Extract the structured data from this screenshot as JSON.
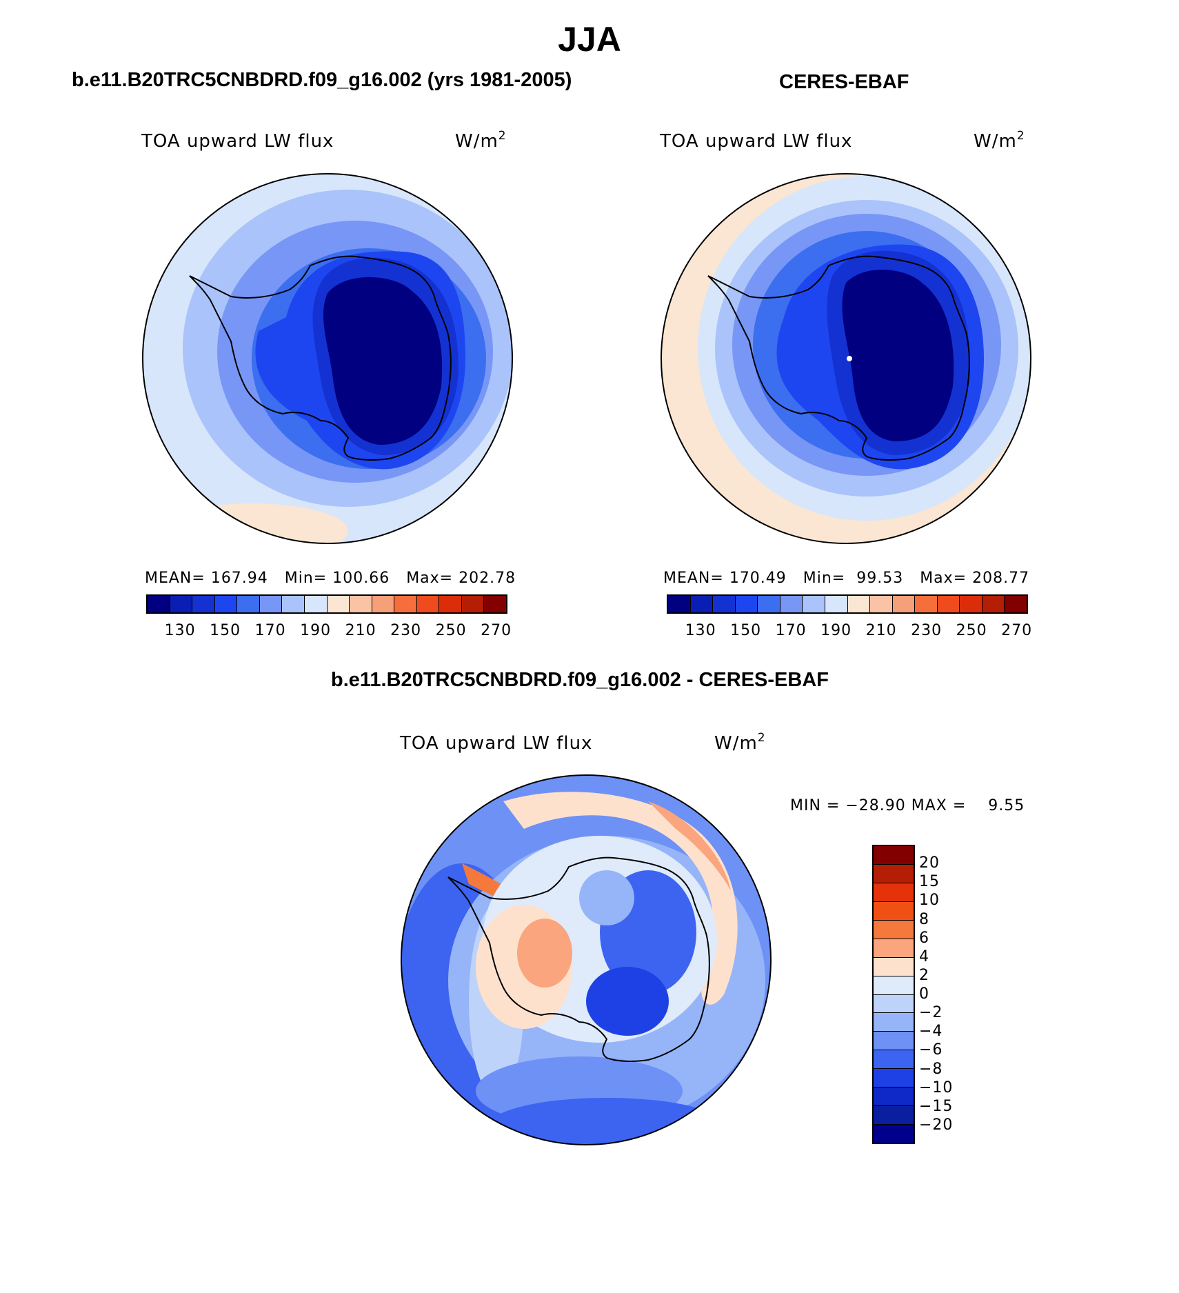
{
  "title": "JJA",
  "panels": {
    "model": {
      "title": "b.e11.B20TRC5CNBDRD.f09_g16.002 (yrs 1981-2005)",
      "variable": "TOA upward LW flux",
      "unit_base": "W/m",
      "unit_exp": "2",
      "stats": "MEAN= 167.94   Min= 100.66   Max= 202.78"
    },
    "obs": {
      "title": "CERES-EBAF",
      "variable": "TOA upward LW flux",
      "unit_base": "W/m",
      "unit_exp": "2",
      "stats": "MEAN= 170.49   Min=  99.53   Max= 208.77"
    },
    "diff": {
      "title": "b.e11.B20TRC5CNBDRD.f09_g16.002 - CERES-EBAF",
      "variable": "TOA upward LW flux",
      "unit_base": "W/m",
      "unit_exp": "2",
      "stats": "MIN = −28.90 MAX =    9.55"
    }
  },
  "colorbar_abs": {
    "ticks": [
      "130",
      "150",
      "170",
      "190",
      "210",
      "230",
      "250",
      "270"
    ],
    "colors": [
      "#000080",
      "#0a1eb4",
      "#1432d2",
      "#1e46f0",
      "#3c6ef0",
      "#7896f5",
      "#aac3fa",
      "#d7e6fa",
      "#fae6d2",
      "#fac3a5",
      "#f5a078",
      "#f56e3c",
      "#f04b1e",
      "#dc2d0a",
      "#b41e05",
      "#820000"
    ]
  },
  "colorbar_diff": {
    "ticks": [
      "20",
      "15",
      "10",
      "8",
      "6",
      "4",
      "2",
      "0",
      "−2",
      "−4",
      "−6",
      "−8",
      "−10",
      "−15",
      "−20"
    ],
    "colors": [
      "#820000",
      "#b41e05",
      "#e6320a",
      "#f05014",
      "#f5783c",
      "#faa57d",
      "#fde1cd",
      "#dfeafb",
      "#bdd3fa",
      "#96b4f8",
      "#6e91f5",
      "#3c64f0",
      "#1e41e6",
      "#0f28c8",
      "#0a1ea0",
      "#00008c"
    ]
  }
}
